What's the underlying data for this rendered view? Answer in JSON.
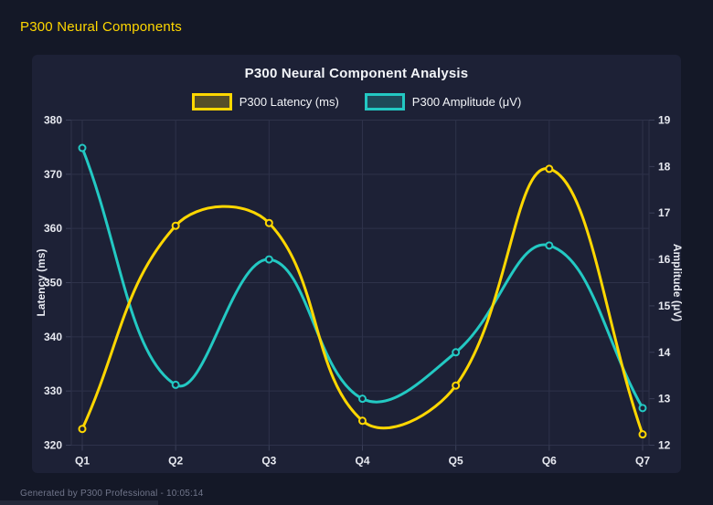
{
  "page": {
    "title": "P300 Neural Components",
    "footer": "Generated by P300 Professional - 10:05:14"
  },
  "colors": {
    "page_bg": "#141827",
    "panel_bg": "#1d2136",
    "grid": "#2e324a",
    "latency": "#ffd700",
    "amplitude": "#23c9c3",
    "title_text": "#f2f4f8",
    "tick_text": "#e7e9f0",
    "footer_text": "#70758a"
  },
  "chart_data": {
    "type": "line",
    "title": "P300 Neural Component Analysis",
    "categories": [
      "Q1",
      "Q2",
      "Q3",
      "Q4",
      "Q5",
      "Q6",
      "Q7"
    ],
    "series": [
      {
        "name": "P300 Latency (ms)",
        "axis": "left",
        "color": "#ffd700",
        "values": [
          323,
          360.5,
          361,
          324.5,
          331,
          371,
          322
        ]
      },
      {
        "name": "P300 Amplitude (μV)",
        "axis": "right",
        "color": "#23c9c3",
        "values": [
          18.4,
          13.3,
          16.0,
          13.0,
          14.0,
          16.3,
          12.8
        ]
      }
    ],
    "left_axis": {
      "label": "Latency (ms)",
      "min": 320,
      "max": 380,
      "ticks": [
        380,
        370,
        360,
        350,
        340,
        330,
        320
      ]
    },
    "right_axis": {
      "label": "Amplitude (μV)",
      "min": 12,
      "max": 19,
      "ticks": [
        19,
        18,
        17,
        16,
        15,
        14,
        13,
        12
      ]
    },
    "grid": true,
    "legend_position": "top",
    "curve_tension": 0.4,
    "point_style": "circle-hollow",
    "line_width": 3
  }
}
